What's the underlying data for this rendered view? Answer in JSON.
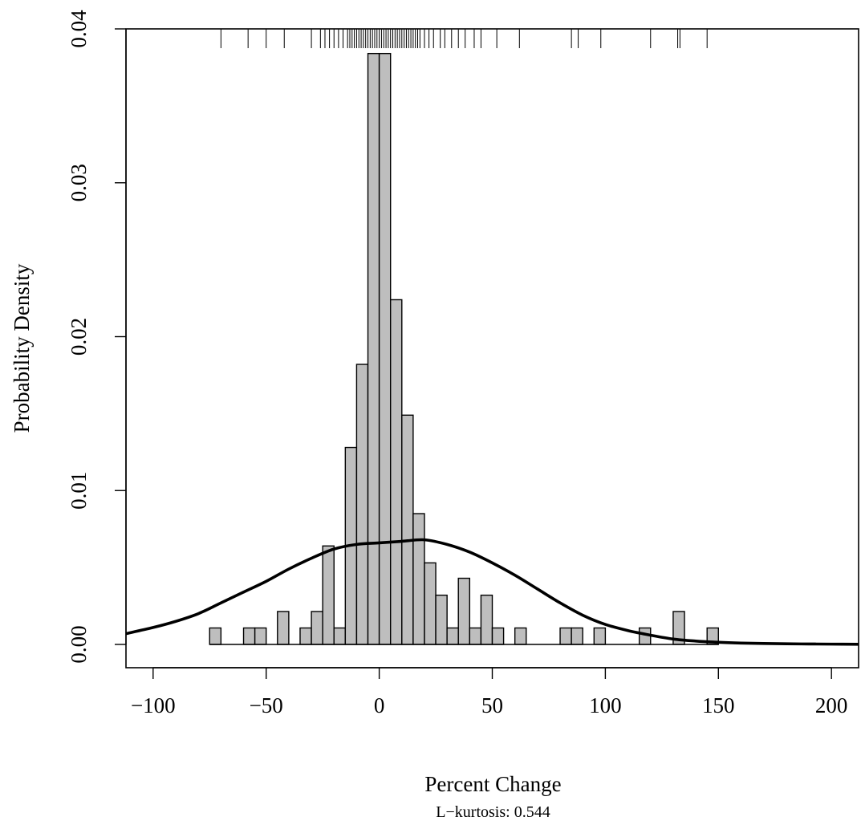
{
  "chart_data": {
    "type": "bar",
    "subtype": "histogram",
    "xlabel": "Percent Change",
    "ylabel": "Probability Density",
    "subtitle": "L−kurtosis: 0.544",
    "xlim": [
      -112,
      212
    ],
    "ylim": [
      0,
      0.04
    ],
    "grid": false,
    "bin_width": 5,
    "x_ticks": [
      -100,
      -50,
      0,
      50,
      100,
      150,
      200
    ],
    "x_tick_labels": [
      "−100",
      "−50",
      "0",
      "50",
      "100",
      "150",
      "200"
    ],
    "y_ticks": [
      0.0,
      0.01,
      0.02,
      0.03,
      0.04
    ],
    "y_tick_labels": [
      "0.00",
      "0.01",
      "0.02",
      "0.03",
      "0.04"
    ],
    "histogram": {
      "bin_starts": [
        -75,
        -70,
        -65,
        -60,
        -55,
        -50,
        -45,
        -40,
        -35,
        -30,
        -25,
        -20,
        -15,
        -10,
        -5,
        0,
        5,
        10,
        15,
        20,
        25,
        30,
        35,
        40,
        45,
        50,
        55,
        60,
        65,
        70,
        75,
        80,
        85,
        90,
        95,
        100,
        105,
        110,
        115,
        120,
        125,
        130,
        135,
        140,
        145
      ],
      "density": [
        0.00107,
        0,
        0,
        0.00107,
        0.00107,
        0,
        0.00214,
        0,
        0.00107,
        0.00214,
        0.0064,
        0.00107,
        0.0128,
        0.0182,
        0.0384,
        0.0384,
        0.0224,
        0.0149,
        0.0085,
        0.0053,
        0.0032,
        0.00107,
        0.0043,
        0.00107,
        0.0032,
        0.00107,
        0,
        0.00107,
        0,
        0,
        0,
        0.00107,
        0.00107,
        0,
        0.00107,
        0,
        0,
        0,
        0.00107,
        0,
        0,
        0.00214,
        0,
        0,
        0.00107
      ]
    },
    "series": [
      {
        "type": "line",
        "x": [
          -112,
          -100,
          -90,
          -80,
          -70,
          -60,
          -50,
          -40,
          -30,
          -20,
          -10,
          0,
          10,
          20,
          30,
          40,
          50,
          60,
          70,
          80,
          90,
          100,
          110,
          120,
          130,
          140,
          150,
          160,
          170,
          180,
          190,
          200,
          212
        ],
        "values": [
          0.0007,
          0.0011,
          0.0015,
          0.002,
          0.0027,
          0.0034,
          0.0041,
          0.0049,
          0.0056,
          0.0062,
          0.0065,
          0.0066,
          0.0067,
          0.0068,
          0.0065,
          0.006,
          0.0053,
          0.0045,
          0.0036,
          0.0027,
          0.0019,
          0.0013,
          0.0009,
          0.0006,
          0.00035,
          0.00022,
          0.00014,
          9e-05,
          6e-05,
          4e-05,
          3e-05,
          2e-05,
          1e-05
        ]
      }
    ],
    "rug": [
      -70,
      -58,
      -50,
      -42,
      -30,
      -26,
      -24,
      -22,
      -20,
      -18,
      -16,
      -14,
      -13,
      -12,
      -11,
      -10,
      -9,
      -8,
      -7,
      -6,
      -5,
      -4,
      -3,
      -2,
      -1,
      0,
      1,
      2,
      3,
      4,
      5,
      6,
      7,
      8,
      9,
      10,
      11,
      12,
      13,
      14,
      15,
      16,
      17,
      18,
      20,
      22,
      24,
      27,
      29,
      32,
      35,
      38,
      42,
      45,
      52,
      62,
      85,
      88,
      98,
      120,
      132,
      133,
      145
    ]
  }
}
